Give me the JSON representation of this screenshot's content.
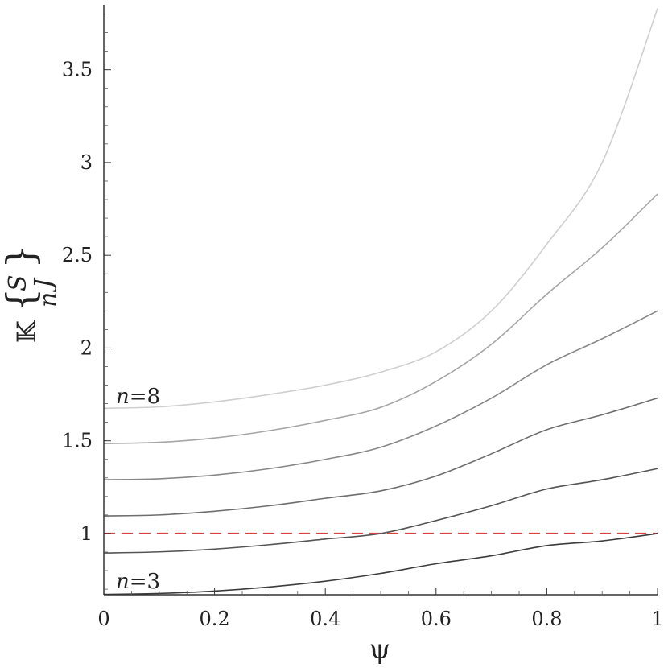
{
  "chart_data": {
    "type": "line",
    "xlabel": "ψ",
    "ylabel": "𝕂{S/n J}",
    "ylabel_parts": {
      "k": "𝕂",
      "n": "n",
      "S": "S",
      "J": "J"
    },
    "xlim": [
      0,
      1
    ],
    "ylim": [
      0.67,
      3.85
    ],
    "xticks": [
      0,
      0.2,
      0.4,
      0.6,
      0.8,
      1
    ],
    "xtick_labels": [
      "0",
      "0.2",
      "0.4",
      "0.6",
      "0.8",
      "1"
    ],
    "yticks": [
      1,
      1.5,
      2,
      2.5,
      3,
      3.5
    ],
    "ytick_labels": [
      "1",
      "1.5",
      "2",
      "2.5",
      "3",
      "3.5"
    ],
    "grid": false,
    "reference_line": {
      "y": 1,
      "style": "dashed",
      "color": "#e0403a"
    },
    "annotations": [
      {
        "text_n": "n",
        "text_rest": "=8"
      },
      {
        "text_n": "n",
        "text_rest": "=3"
      }
    ],
    "x": [
      0,
      0.1,
      0.2,
      0.3,
      0.4,
      0.5,
      0.6,
      0.7,
      0.8,
      0.9,
      1.0
    ],
    "series": [
      {
        "color": "#3c3c3c",
        "values": [
          0.672,
          0.677,
          0.69,
          0.712,
          0.743,
          0.785,
          0.837,
          0.88,
          0.935,
          0.96,
          1.0
        ]
      },
      {
        "color": "#555555",
        "values": [
          0.895,
          0.901,
          0.916,
          0.94,
          0.97,
          1.0,
          1.07,
          1.15,
          1.24,
          1.29,
          1.35
        ]
      },
      {
        "color": "#6e6e6e",
        "values": [
          1.095,
          1.1,
          1.12,
          1.15,
          1.19,
          1.23,
          1.31,
          1.43,
          1.56,
          1.64,
          1.73
        ]
      },
      {
        "color": "#888888",
        "values": [
          1.29,
          1.295,
          1.315,
          1.35,
          1.4,
          1.465,
          1.58,
          1.73,
          1.91,
          2.05,
          2.2
        ]
      },
      {
        "color": "#a6a6a6",
        "values": [
          1.485,
          1.492,
          1.515,
          1.555,
          1.61,
          1.68,
          1.82,
          2.02,
          2.29,
          2.54,
          2.83
        ]
      },
      {
        "color": "#cfcfcf",
        "values": [
          1.675,
          1.683,
          1.71,
          1.75,
          1.8,
          1.87,
          1.98,
          2.2,
          2.56,
          3.0,
          3.83
        ]
      }
    ]
  }
}
